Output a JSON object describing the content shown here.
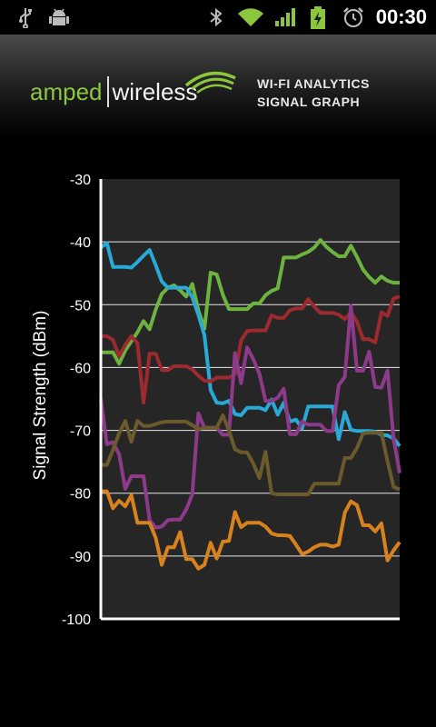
{
  "statusbar": {
    "time": "00:30",
    "icons": [
      "usb-icon",
      "android-debug-icon",
      "bluetooth-icon",
      "wifi-icon",
      "signal-bars-icon",
      "battery-charging-icon",
      "alarm-icon"
    ]
  },
  "header": {
    "logo_left": "amped",
    "logo_right": "wireless",
    "title_line1": "WI-FI ANALYTICS",
    "title_line2": "SIGNAL GRAPH"
  },
  "chart_data": {
    "type": "line",
    "ylabel": "Signal Strength (dBm)",
    "xlabel": "",
    "ylim": [
      -100,
      -30
    ],
    "yticks": [
      "-30",
      "-40",
      "-50",
      "-60",
      "-70",
      "-80",
      "-90",
      "-100"
    ],
    "grid": true,
    "x": [
      0,
      1,
      2,
      3,
      4,
      5,
      6,
      7,
      8,
      9,
      10,
      11,
      12,
      13,
      14,
      15,
      16,
      17,
      18,
      19,
      20,
      21,
      22,
      23,
      24,
      25,
      26,
      27,
      28,
      29,
      30,
      31,
      32,
      33,
      34,
      35,
      36,
      37,
      38,
      39,
      40,
      41,
      42,
      43,
      44,
      45,
      46,
      47,
      48,
      49
    ],
    "series": [
      {
        "color": "#6db33f",
        "values": [
          -57.6,
          -57.6,
          -57.6,
          -59.4,
          -57.3,
          -55.8,
          -54.4,
          -52.6,
          -53.9,
          -50.8,
          -48.3,
          -47.3,
          -46.9,
          -47.7,
          -48.7,
          -46.7,
          -50.9,
          -53.8,
          -44.9,
          -45.2,
          -48.4,
          -50.7,
          -50.7,
          -50.7,
          -50.7,
          -49.8,
          -49.8,
          -48.5,
          -47.8,
          -47.4,
          -42.5,
          -42.5,
          -42.5,
          -42.0,
          -41.6,
          -40.9,
          -39.7,
          -40.8,
          -41.6,
          -42.3,
          -42.3,
          -40.6,
          -42.4,
          -44.4,
          -45.6,
          -46.5,
          -45.5,
          -46.2,
          -46.5,
          -46.5
        ]
      },
      {
        "color": "#29a9d6",
        "values": [
          -40.9,
          -40.2,
          -44.0,
          -44.0,
          -44.0,
          -44.1,
          -43.2,
          -42.2,
          -41.3,
          -43.7,
          -46.3,
          -47.3,
          -47.3,
          -47.3,
          -47.3,
          -48.8,
          -51.6,
          -54.9,
          -63.6,
          -65.6,
          -65.7,
          -65.3,
          -67.4,
          -67.6,
          -66.4,
          -66.4,
          -66.4,
          -66.8,
          -65.1,
          -67.5,
          -65.6,
          -68.6,
          -68.3,
          -69.7,
          -66.2,
          -66.2,
          -66.2,
          -66.2,
          -66.2,
          -71.4,
          -67.1,
          -69.9,
          -70.1,
          -70.1,
          -70.1,
          -70.2,
          -70.7,
          -70.8,
          -71.3,
          -72.5
        ]
      },
      {
        "color": "#9c2a2e",
        "values": [
          -55.0,
          -55.0,
          -55.6,
          -58.2,
          -56.4,
          -55.0,
          -56.1,
          -65.6,
          -57.8,
          -57.8,
          -60.4,
          -60.4,
          -59.8,
          -59.8,
          -59.8,
          -60.3,
          -61.3,
          -62.1,
          -62.2,
          -61.6,
          -61.6,
          -61.6,
          -61.1,
          -55.7,
          -54.2,
          -54.1,
          -54.1,
          -54.1,
          -51.7,
          -52.1,
          -52.1,
          -50.9,
          -50.6,
          -50.6,
          -49.1,
          -50.3,
          -51.3,
          -51.3,
          -51.3,
          -51.6,
          -52.3,
          -51.2,
          -52.7,
          -55.5,
          -55.5,
          -56.0,
          -51.2,
          -51.8,
          -49.0,
          -48.7
        ]
      },
      {
        "color": "#8e3a8a",
        "values": [
          -65.0,
          -72.2,
          -71.9,
          -73.8,
          -79.3,
          -77.3,
          -77.3,
          -77.3,
          -84.3,
          -85.5,
          -85.3,
          -84.3,
          -84.2,
          -84.2,
          -82.6,
          -80.2,
          -67.3,
          -69.6,
          -69.6,
          -69.6,
          -70.7,
          -70.7,
          -57.7,
          -62.5,
          -56.8,
          -58.7,
          -61.0,
          -65.3,
          -65.3,
          -64.8,
          -63.4,
          -70.6,
          -70.6,
          -68.6,
          -69.1,
          -69.1,
          -69.1,
          -70.1,
          -70.1,
          -62.8,
          -61.5,
          -50.2,
          -60.5,
          -60.5,
          -57.5,
          -63.1,
          -63.2,
          -60.5,
          -71.3,
          -76.8
        ]
      },
      {
        "color": "#6b5b2c",
        "values": [
          -75.5,
          -75.5,
          -73.1,
          -70.5,
          -68.5,
          -71.8,
          -68.5,
          -69.3,
          -69.3,
          -69.0,
          -68.7,
          -68.6,
          -68.6,
          -68.6,
          -68.6,
          -69.2,
          -69.8,
          -69.6,
          -69.6,
          -69.6,
          -67.6,
          -70.0,
          -73.0,
          -73.5,
          -73.5,
          -75.3,
          -77.6,
          -73.4,
          -80.0,
          -80.2,
          -80.2,
          -80.2,
          -80.2,
          -80.2,
          -80.2,
          -78.5,
          -78.5,
          -78.5,
          -78.5,
          -78.5,
          -74.4,
          -74.4,
          -72.8,
          -70.5,
          -70.4,
          -70.4,
          -70.4,
          -74.9,
          -79.0,
          -79.4
        ]
      },
      {
        "color": "#d7821e",
        "values": [
          -79.7,
          -79.7,
          -82.4,
          -81.2,
          -82.1,
          -80.3,
          -84.7,
          -84.7,
          -84.7,
          -87.1,
          -91.4,
          -88.6,
          -88.6,
          -86.2,
          -90.5,
          -90.5,
          -92.0,
          -91.4,
          -87.9,
          -90.4,
          -87.7,
          -87.6,
          -83.0,
          -85.4,
          -84.7,
          -84.7,
          -84.7,
          -85.3,
          -86.4,
          -86.7,
          -86.7,
          -86.8,
          -88.2,
          -89.7,
          -89.3,
          -88.6,
          -88.2,
          -88.2,
          -88.5,
          -88.2,
          -83.1,
          -81.3,
          -81.9,
          -85.1,
          -85.1,
          -86.1,
          -84.8,
          -90.7,
          -89.1,
          -87.8
        ]
      }
    ]
  }
}
